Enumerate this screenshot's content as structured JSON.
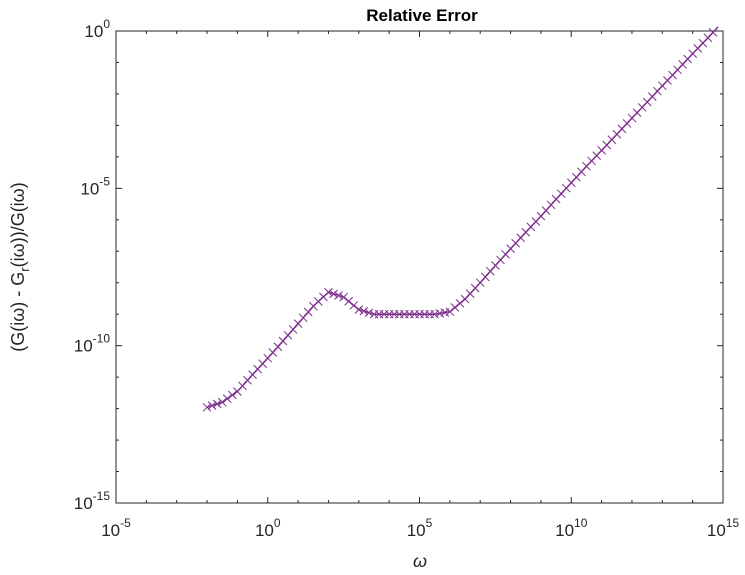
{
  "chart_data": {
    "type": "line",
    "title": "Relative Error",
    "xlabel": "ω",
    "ylabel": {
      "parts": [
        {
          "text": "(G(iω) - G",
          "sub": false
        },
        {
          "text": "r",
          "sub": true
        },
        {
          "text": "(iω))/G(iω)",
          "sub": false
        }
      ]
    },
    "xscale": "log",
    "yscale": "log",
    "xlim": [
      1e-05,
      1000000000000000.0
    ],
    "ylim": [
      1e-15,
      1
    ],
    "xticks": [
      {
        "base": "10",
        "exp": "-5",
        "value": 1e-05
      },
      {
        "base": "10",
        "exp": "0",
        "value": 1
      },
      {
        "base": "10",
        "exp": "5",
        "value": 100000.0
      },
      {
        "base": "10",
        "exp": "10",
        "value": 10000000000.0
      },
      {
        "base": "10",
        "exp": "15",
        "value": 1000000000000000.0
      }
    ],
    "yticks": [
      {
        "base": "10",
        "exp": "-15",
        "value": 1e-15
      },
      {
        "base": "10",
        "exp": "-10",
        "value": 1e-10
      },
      {
        "base": "10",
        "exp": "-5",
        "value": 1e-05
      },
      {
        "base": "10",
        "exp": "0",
        "value": 1
      }
    ],
    "grid": false,
    "line_color": "#7e2f8e",
    "marker": "x",
    "series": [
      {
        "x": [
          0.01,
          0.0316,
          0.1,
          0.316,
          1,
          3.16,
          10,
          31.6,
          100,
          316,
          1000,
          3162,
          10000,
          31623,
          100000,
          316228,
          1000000,
          3162278,
          10000000.0,
          31600000.0,
          100000000.0,
          316000000.0,
          1000000000.0,
          3160000000.0,
          10000000000.0,
          31600000000.0,
          100000000000.0,
          316000000000.0,
          1000000000000.0,
          3160000000000.0,
          10000000000000.0,
          31600000000000.0,
          100000000000000.0,
          316000000000000.0,
          1000000000000000.0
        ],
        "y": [
          1.1e-12,
          1.6e-12,
          3.5e-12,
          1.2e-11,
          4e-11,
          1.4e-10,
          5e-10,
          1.8e-09,
          5e-09,
          3.5e-09,
          1.4e-09,
          1e-09,
          1e-09,
          1e-09,
          1e-09,
          1e-09,
          1.2e-09,
          3e-09,
          1e-08,
          3.5e-08,
          1.2e-07,
          4e-07,
          1.3e-06,
          4.5e-06,
          1.5e-05,
          5e-05,
          0.00016,
          0.00052,
          0.0017,
          0.0055,
          0.018,
          0.058,
          0.19,
          0.6,
          2.0
        ]
      }
    ]
  }
}
